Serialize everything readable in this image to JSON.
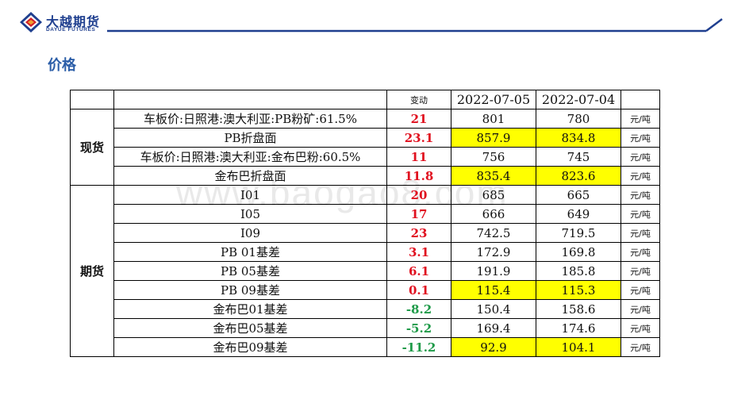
{
  "header": {
    "logo_cn": "大越期货",
    "logo_en": "DAYUE FUTURES"
  },
  "page_title": "价格",
  "watermark": "www.baogao8.com",
  "table": {
    "change_header": "变动",
    "date1": "2022-07-05",
    "date2": "2022-07-04",
    "groups": [
      {
        "label": "现货",
        "rows": [
          {
            "name": "车板价:日照港:澳大利亚:PB粉矿:61.5%",
            "change": "21",
            "dir": "up",
            "v1": "801",
            "v2": "780",
            "hl1": false,
            "hl2": false,
            "unit": "元/吨"
          },
          {
            "name": "PB折盘面",
            "change": "23.1",
            "dir": "up",
            "v1": "857.9",
            "v2": "834.8",
            "hl1": true,
            "hl2": true,
            "unit": "元/吨"
          },
          {
            "name": "车板价:日照港:澳大利亚:金布巴粉:60.5%",
            "change": "11",
            "dir": "up",
            "v1": "756",
            "v2": "745",
            "hl1": false,
            "hl2": false,
            "unit": "元/吨"
          },
          {
            "name": "金布巴折盘面",
            "change": "11.8",
            "dir": "up",
            "v1": "835.4",
            "v2": "823.6",
            "hl1": true,
            "hl2": true,
            "unit": "元/吨"
          }
        ]
      },
      {
        "label": "期货",
        "rows": [
          {
            "name": "I01",
            "change": "20",
            "dir": "up",
            "v1": "685",
            "v2": "665",
            "hl1": false,
            "hl2": false,
            "unit": "元/吨"
          },
          {
            "name": "I05",
            "change": "17",
            "dir": "up",
            "v1": "666",
            "v2": "649",
            "hl1": false,
            "hl2": false,
            "unit": "元/吨"
          },
          {
            "name": "I09",
            "change": "23",
            "dir": "up",
            "v1": "742.5",
            "v2": "719.5",
            "hl1": false,
            "hl2": false,
            "unit": "元/吨"
          },
          {
            "name": "PB 01基差",
            "change": "3.1",
            "dir": "up",
            "v1": "172.9",
            "v2": "169.8",
            "hl1": false,
            "hl2": false,
            "unit": "元/吨"
          },
          {
            "name": "PB 05基差",
            "change": "6.1",
            "dir": "up",
            "v1": "191.9",
            "v2": "185.8",
            "hl1": false,
            "hl2": false,
            "unit": "元/吨"
          },
          {
            "name": "PB 09基差",
            "change": "0.1",
            "dir": "up",
            "v1": "115.4",
            "v2": "115.3",
            "hl1": true,
            "hl2": true,
            "unit": "元/吨"
          },
          {
            "name": "金布巴01基差",
            "change": "-8.2",
            "dir": "down",
            "v1": "150.4",
            "v2": "158.6",
            "hl1": false,
            "hl2": false,
            "unit": "元/吨"
          },
          {
            "name": "金布巴05基差",
            "change": "-5.2",
            "dir": "down",
            "v1": "169.4",
            "v2": "174.6",
            "hl1": false,
            "hl2": false,
            "unit": "元/吨"
          },
          {
            "name": "金布巴09基差",
            "change": "-11.2",
            "dir": "down",
            "v1": "92.9",
            "v2": "104.1",
            "hl1": true,
            "hl2": true,
            "unit": "元/吨"
          }
        ]
      }
    ]
  },
  "colors": {
    "brand_blue": "#1f3f8f",
    "title_blue": "#2c5ea8",
    "up": "#e0101f",
    "down": "#1e9a48",
    "highlight": "#ffff00"
  }
}
